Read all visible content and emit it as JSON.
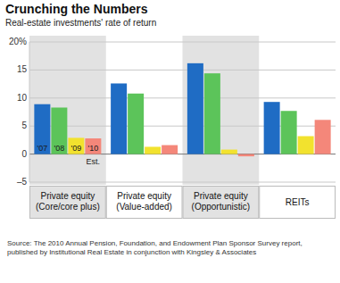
{
  "chart_data": {
    "type": "bar",
    "title": "Crunching the Numbers",
    "subtitle": "Real-estate investments' rate of return",
    "categories": [
      "Private equity (Core/core plus)",
      "Private equity (Value-added)",
      "Private equity (Opportunistic)",
      "REITs"
    ],
    "series": [
      {
        "name": "'07",
        "color": "#1f6cc4",
        "values": [
          8.9,
          12.6,
          16.2,
          9.3
        ]
      },
      {
        "name": "'08",
        "color": "#5cc45a",
        "values": [
          8.3,
          10.8,
          14.4,
          7.7
        ]
      },
      {
        "name": "'09",
        "color": "#f2e22e",
        "values": [
          2.9,
          1.3,
          0.8,
          3.2
        ]
      },
      {
        "name": "'10 Est.",
        "color": "#f4877a",
        "values": [
          2.8,
          1.6,
          -0.4,
          6.1
        ]
      }
    ],
    "ylim": [
      -5,
      20
    ],
    "yticks": [
      {
        "value": -5,
        "label": "–5"
      },
      0,
      5,
      10,
      15,
      {
        "value": 20,
        "label": "20%"
      }
    ],
    "grid": true,
    "source": "Source: The 2010 Annual Pension, Foundation, and Endowment Plan Sponsor Survey report, published by Institutional Real Estate in conjunction with Kingsley & Associates"
  }
}
